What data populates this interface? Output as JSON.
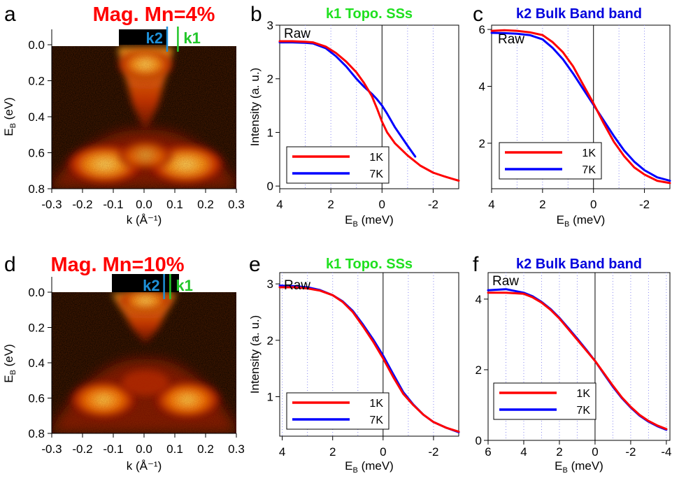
{
  "panel_labels": [
    "a",
    "b",
    "c",
    "d",
    "e",
    "f"
  ],
  "colors": {
    "series_1K": "#ff0000",
    "series_7K": "#0000ff",
    "k1_marker": "#22c62a",
    "k2_marker": "#1e90d8",
    "title_red": "#ff0000",
    "title_green": "#1fe01f",
    "title_blue": "#0000dd"
  },
  "chart_data": [
    {
      "panel": "a",
      "type": "heatmap",
      "title": "Mag. Mn=4%",
      "xlabel": "k (Å⁻¹)",
      "ylabel": "E_B (eV)",
      "xlim": [
        -0.3,
        0.3
      ],
      "ylim": [
        0.8,
        0.0
      ],
      "x_ticks": [
        "-0.3",
        "-0.2",
        "-0.1",
        "0.0",
        "0.1",
        "0.2",
        "0.3"
      ],
      "y_ticks": [
        "0.0",
        "0.2",
        "0.4",
        "0.6",
        "0.8"
      ],
      "markers": [
        {
          "label": "k2",
          "k": 0.075
        },
        {
          "label": "k1",
          "k": 0.11
        }
      ]
    },
    {
      "panel": "b",
      "type": "line",
      "title": "k1  Topo. SSs",
      "annotation": "Raw",
      "xlabel": "E_B (meV)",
      "ylabel": "Intensity (a. u.)",
      "xlim": [
        4,
        -3
      ],
      "ylim": [
        -0.05,
        3.0
      ],
      "x_ticks": [
        "4",
        "2",
        "0",
        "-2"
      ],
      "y_ticks": [
        "0",
        "1",
        "2",
        "3"
      ],
      "grid": "vertical dotted",
      "legend": "bottom-left",
      "series": [
        {
          "name": "1K",
          "x": [
            4,
            3.5,
            3.0,
            2.7,
            2.2,
            1.8,
            1.4,
            1.0,
            0.7,
            0.4,
            0.2,
            0.0,
            -0.2,
            -0.5,
            -1.0,
            -1.5,
            -2.0,
            -2.5,
            -3.0
          ],
          "values": [
            2.7,
            2.7,
            2.69,
            2.68,
            2.6,
            2.48,
            2.32,
            2.12,
            1.92,
            1.68,
            1.45,
            1.2,
            1.0,
            0.8,
            0.57,
            0.38,
            0.25,
            0.17,
            0.1
          ]
        },
        {
          "name": "7K",
          "x": [
            4,
            3.5,
            3.0,
            2.7,
            2.2,
            1.8,
            1.4,
            1.0,
            0.7,
            0.4,
            0.2,
            0.0,
            -0.2,
            -0.5,
            -1.0,
            -1.3
          ],
          "values": [
            2.68,
            2.68,
            2.67,
            2.66,
            2.57,
            2.42,
            2.23,
            2.0,
            1.85,
            1.72,
            1.62,
            1.5,
            1.35,
            1.1,
            0.75,
            0.55
          ]
        }
      ]
    },
    {
      "panel": "c",
      "type": "line",
      "title": "k2  Bulk Band band",
      "annotation": "Raw",
      "xlabel": "E_B (meV)",
      "ylabel": "",
      "xlim": [
        4,
        -3
      ],
      "ylim": [
        0.4,
        6.15
      ],
      "x_ticks": [
        "4",
        "2",
        "0",
        "-2"
      ],
      "y_ticks": [
        "2",
        "4",
        "6"
      ],
      "grid": "vertical dotted",
      "legend": "bottom-left",
      "series": [
        {
          "name": "1K",
          "x": [
            4,
            3.5,
            3.0,
            2.5,
            2.0,
            1.6,
            1.2,
            0.8,
            0.4,
            0.0,
            -0.4,
            -0.8,
            -1.2,
            -1.6,
            -2.0,
            -2.5,
            -3.0
          ],
          "values": [
            5.95,
            5.97,
            5.95,
            5.9,
            5.8,
            5.55,
            5.2,
            4.7,
            4.05,
            3.4,
            2.7,
            2.05,
            1.55,
            1.15,
            0.9,
            0.68,
            0.6
          ]
        },
        {
          "name": "7K",
          "x": [
            4,
            3.5,
            3.0,
            2.5,
            2.0,
            1.6,
            1.2,
            0.8,
            0.4,
            0.0,
            -0.4,
            -0.8,
            -1.2,
            -1.6,
            -2.0,
            -2.5,
            -3.0
          ],
          "values": [
            5.88,
            5.87,
            5.85,
            5.8,
            5.65,
            5.35,
            4.95,
            4.45,
            3.9,
            3.35,
            2.8,
            2.25,
            1.75,
            1.35,
            1.05,
            0.8,
            0.68
          ]
        }
      ]
    },
    {
      "panel": "d",
      "type": "heatmap",
      "title": "Mag. Mn=10%",
      "xlabel": "k (Å⁻¹)",
      "ylabel": "E_B (eV)",
      "xlim": [
        -0.3,
        0.3
      ],
      "ylim": [
        0.8,
        0.0
      ],
      "x_ticks": [
        "-0.3",
        "-0.2",
        "-0.1",
        "0.0",
        "0.1",
        "0.2",
        "0.3"
      ],
      "y_ticks": [
        "0.0",
        "0.2",
        "0.4",
        "0.6",
        "0.8"
      ],
      "markers": [
        {
          "label": "k2",
          "k": 0.065
        },
        {
          "label": "k1",
          "k": 0.085
        }
      ]
    },
    {
      "panel": "e",
      "type": "line",
      "title": "k1  Topo. SSs",
      "annotation": "Raw",
      "xlabel": "E_B (meV)",
      "ylabel": "Intensity (a. u.)",
      "xlim": [
        4.1,
        -3
      ],
      "ylim": [
        0.3,
        3.2
      ],
      "x_ticks": [
        "4",
        "2",
        "0",
        "-2"
      ],
      "y_ticks": [
        "1",
        "2",
        "3"
      ],
      "grid": "vertical dotted",
      "legend": "bottom-left",
      "series": [
        {
          "name": "1K",
          "x": [
            4.1,
            3.5,
            3.0,
            2.5,
            2.0,
            1.6,
            1.2,
            0.8,
            0.4,
            0.0,
            -0.4,
            -0.8,
            -1.2,
            -1.6,
            -2.0,
            -2.5,
            -3.0
          ],
          "values": [
            2.94,
            2.94,
            2.92,
            2.88,
            2.8,
            2.68,
            2.5,
            2.25,
            1.98,
            1.68,
            1.35,
            1.05,
            0.85,
            0.68,
            0.55,
            0.45,
            0.38
          ]
        },
        {
          "name": "7K",
          "x": [
            4.1,
            3.5,
            3.0,
            2.5,
            2.0,
            1.6,
            1.2,
            0.8,
            0.4,
            0.0,
            -0.4,
            -0.8,
            -1.2,
            -1.6,
            -2.0,
            -2.5,
            -3.0
          ],
          "values": [
            2.97,
            2.96,
            2.94,
            2.89,
            2.8,
            2.69,
            2.52,
            2.28,
            2.02,
            1.73,
            1.4,
            1.08,
            0.86,
            0.68,
            0.55,
            0.45,
            0.37
          ]
        }
      ]
    },
    {
      "panel": "f",
      "type": "line",
      "title": "k2  Bulk Band band",
      "annotation": "Raw",
      "xlabel": "E_B (meV)",
      "ylabel": "",
      "xlim": [
        6,
        -4.2
      ],
      "ylim": [
        0,
        4.75
      ],
      "x_ticks": [
        "6",
        "4",
        "2",
        "0",
        "-2",
        "-4"
      ],
      "y_ticks": [
        "0",
        "2",
        "4"
      ],
      "grid": "vertical dotted",
      "legend": "bottom-left",
      "series": [
        {
          "name": "1K",
          "x": [
            6,
            5,
            4,
            3.5,
            3,
            2.5,
            2,
            1.5,
            1,
            0.5,
            0,
            -0.5,
            -1,
            -1.5,
            -2,
            -2.5,
            -3,
            -3.5,
            -4
          ],
          "values": [
            4.18,
            4.18,
            4.15,
            4.05,
            3.9,
            3.7,
            3.45,
            3.15,
            2.85,
            2.55,
            2.25,
            1.9,
            1.55,
            1.22,
            0.95,
            0.72,
            0.55,
            0.42,
            0.32
          ]
        },
        {
          "name": "7K",
          "x": [
            6,
            5,
            4,
            3.5,
            3,
            2.5,
            2,
            1.5,
            1,
            0.5,
            0,
            -0.5,
            -1,
            -1.5,
            -2,
            -2.5,
            -3,
            -3.5,
            -4
          ],
          "values": [
            4.25,
            4.28,
            4.18,
            4.08,
            3.92,
            3.72,
            3.47,
            3.18,
            2.88,
            2.57,
            2.25,
            1.88,
            1.52,
            1.2,
            0.93,
            0.7,
            0.53,
            0.4,
            0.3
          ]
        }
      ]
    }
  ]
}
